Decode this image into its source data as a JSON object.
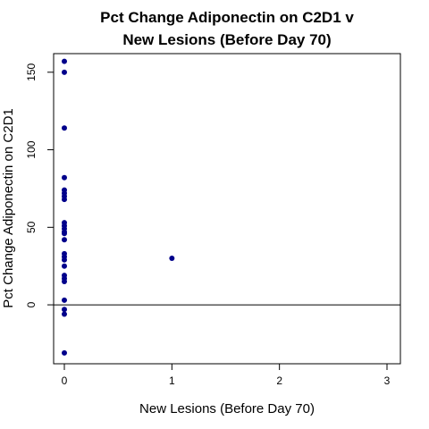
{
  "chart_data": {
    "type": "scatter",
    "title_lines": [
      "Pct Change Adiponectin on C2D1 v",
      "New Lesions (Before Day 70)"
    ],
    "xlabel": "New Lesions (Before Day 70)",
    "ylabel": "Pct Change Adiponectin on C2D1",
    "xlim": [
      0,
      3
    ],
    "ylim": [
      -38,
      162
    ],
    "xticks": [
      "0",
      "1",
      "2",
      "3"
    ],
    "yticks": [
      "0",
      "50",
      "100",
      "150"
    ],
    "reference_line": {
      "y": 0
    },
    "grid": false,
    "point_color": "#00008B",
    "points": [
      {
        "x": 0,
        "y": 157
      },
      {
        "x": 0,
        "y": 150
      },
      {
        "x": 0,
        "y": 114
      },
      {
        "x": 0,
        "y": 82
      },
      {
        "x": 0,
        "y": 74
      },
      {
        "x": 0,
        "y": 72
      },
      {
        "x": 0,
        "y": 70
      },
      {
        "x": 0,
        "y": 68
      },
      {
        "x": 0,
        "y": 53
      },
      {
        "x": 0,
        "y": 51
      },
      {
        "x": 0,
        "y": 49
      },
      {
        "x": 0,
        "y": 47
      },
      {
        "x": 0,
        "y": 46
      },
      {
        "x": 0,
        "y": 42
      },
      {
        "x": 0,
        "y": 33
      },
      {
        "x": 0,
        "y": 31
      },
      {
        "x": 0,
        "y": 29
      },
      {
        "x": 0,
        "y": 25
      },
      {
        "x": 0,
        "y": 19
      },
      {
        "x": 0,
        "y": 17
      },
      {
        "x": 0,
        "y": 15
      },
      {
        "x": 0,
        "y": 3
      },
      {
        "x": 0,
        "y": -3
      },
      {
        "x": 0,
        "y": -6
      },
      {
        "x": 0,
        "y": -31
      },
      {
        "x": 1,
        "y": 30
      }
    ]
  }
}
